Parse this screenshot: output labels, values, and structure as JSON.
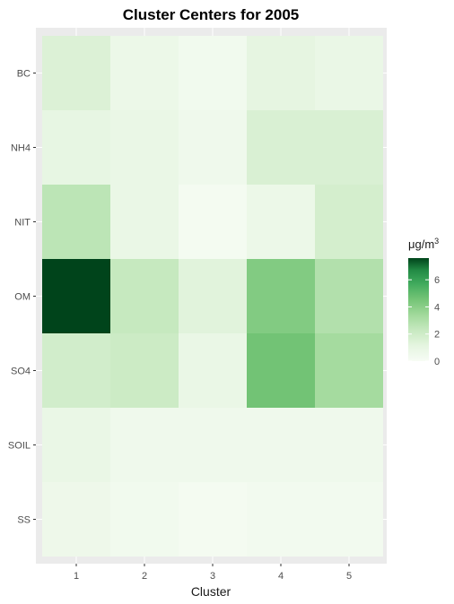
{
  "chart_data": {
    "type": "heatmap",
    "title": "Cluster Centers for 2005",
    "xlabel": "Cluster",
    "ylabel": "",
    "x_categories": [
      "1",
      "2",
      "3",
      "4",
      "5"
    ],
    "y_categories": [
      "BC",
      "NH4",
      "NIT",
      "OM",
      "SO4",
      "SOIL",
      "SS"
    ],
    "values": [
      [
        1.5,
        0.7,
        0.4,
        1.1,
        0.8
      ],
      [
        1.0,
        0.8,
        0.5,
        1.6,
        1.6
      ],
      [
        2.6,
        0.8,
        0.2,
        0.7,
        1.8
      ],
      [
        7.6,
        2.3,
        1.3,
        4.2,
        2.9
      ],
      [
        1.9,
        2.1,
        0.8,
        4.6,
        3.3
      ],
      [
        0.8,
        0.5,
        0.5,
        0.5,
        0.5
      ],
      [
        0.6,
        0.4,
        0.2,
        0.3,
        0.3
      ]
    ],
    "colorbar": {
      "title_main": "μg/m",
      "title_sup": "3",
      "min": 0,
      "max": 7.6,
      "ticks": [
        0,
        2,
        4,
        6
      ],
      "low_color": "#f7fcf5",
      "high_color": "#00441b"
    },
    "grid": true,
    "legend_position": "right"
  }
}
